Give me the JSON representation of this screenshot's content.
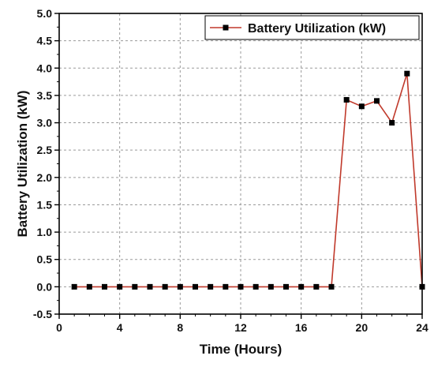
{
  "chart_data": {
    "type": "line",
    "xlabel": "Time (Hours)",
    "ylabel": "Battery Utilization (kW)",
    "xlim": [
      0,
      24
    ],
    "ylim": [
      -0.5,
      5.0
    ],
    "xticks": [
      0,
      4,
      8,
      12,
      16,
      20,
      24
    ],
    "yticks": [
      -0.5,
      0.0,
      0.5,
      1.0,
      1.5,
      2.0,
      2.5,
      3.0,
      3.5,
      4.0,
      4.5,
      5.0
    ],
    "ytick_labels": [
      "-0.5",
      "0.0",
      "0.5",
      "1.0",
      "1.5",
      "2.0",
      "2.5",
      "3.0",
      "3.5",
      "4.0",
      "4.5",
      "5.0"
    ],
    "grid": true,
    "legend_position": "top-right",
    "series": [
      {
        "name": "Battery Utilization (kW)",
        "color": "#c0392b",
        "marker_color": "#000000",
        "x": [
          1,
          2,
          3,
          4,
          5,
          6,
          7,
          8,
          9,
          10,
          11,
          12,
          13,
          14,
          15,
          16,
          17,
          18,
          19,
          20,
          21,
          22,
          23,
          24
        ],
        "y": [
          0,
          0,
          0,
          0,
          0,
          0,
          0,
          0,
          0,
          0,
          0,
          0,
          0,
          0,
          0,
          0,
          0,
          0,
          3.42,
          3.3,
          3.4,
          3.0,
          3.9,
          0
        ]
      }
    ]
  }
}
